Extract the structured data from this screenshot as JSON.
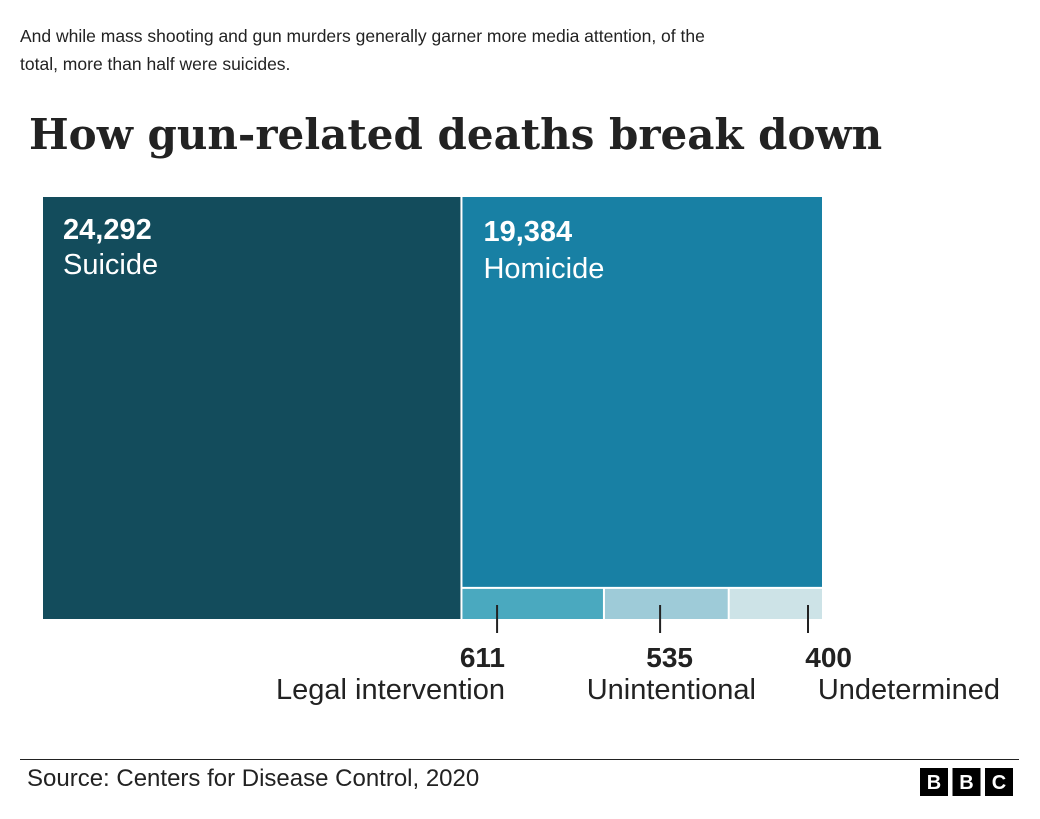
{
  "intro": "And while mass shooting and gun murders generally garner more media attention, of the total, more than half were suicides.",
  "footer": {
    "source": "Source: Centers for Disease Control, 2020",
    "logo": "BBC"
  },
  "chart_data": {
    "type": "treemap",
    "title": "How gun-related deaths break down",
    "unit": "deaths",
    "items": [
      {
        "name": "Suicide",
        "value": 24292,
        "label": "24,292",
        "color": "#134c5c"
      },
      {
        "name": "Homicide",
        "value": 19384,
        "label": "19,384",
        "color": "#1880a4"
      },
      {
        "name": "Legal intervention",
        "value": 611,
        "label": "611",
        "color": "#4aa9bf"
      },
      {
        "name": "Unintentional",
        "value": 535,
        "label": "535",
        "color": "#9ecbd8"
      },
      {
        "name": "Undetermined",
        "value": 400,
        "label": "400",
        "color": "#cde3e7"
      }
    ]
  }
}
